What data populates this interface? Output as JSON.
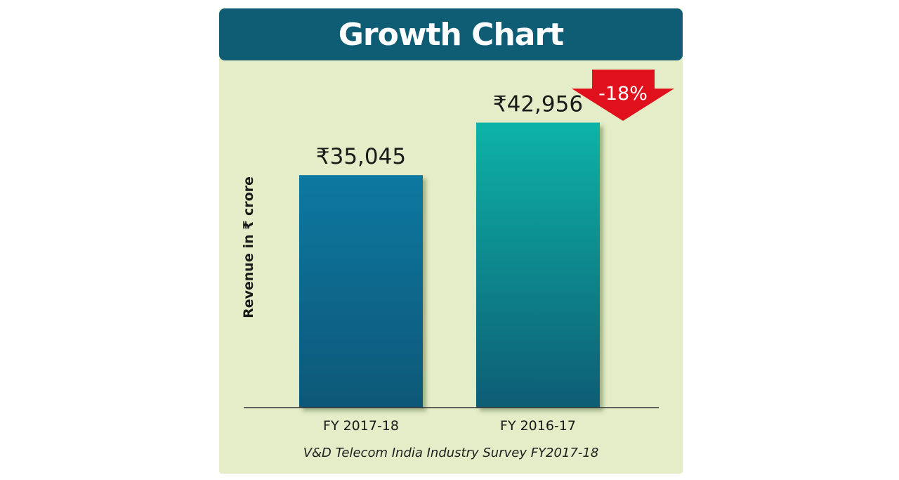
{
  "title": "Growth Chart",
  "source": "V&D Telecom India Industry Survey FY2017-18",
  "chart_data": {
    "type": "bar",
    "title": "Growth Chart",
    "ylabel": "Revenue in ₹ crore",
    "xlabel": "",
    "categories": [
      "FY 2017-18",
      "FY 2016-17"
    ],
    "values": [
      35045,
      42956
    ],
    "value_labels": [
      "₹35,045",
      "₹42,956"
    ],
    "ylim": [
      0,
      50000
    ],
    "grid": false,
    "legend": "none",
    "annotation": "-18%",
    "colors": {
      "bar_1_top": "#0b78a0",
      "bar_1_bottom": "#0e5878",
      "bar_2_top": "#10b3a6",
      "bar_2_bottom": "#0c5d75",
      "arrow": "#e0101c",
      "title_bar": "#0f5d75",
      "background": "#e4edc7"
    }
  }
}
